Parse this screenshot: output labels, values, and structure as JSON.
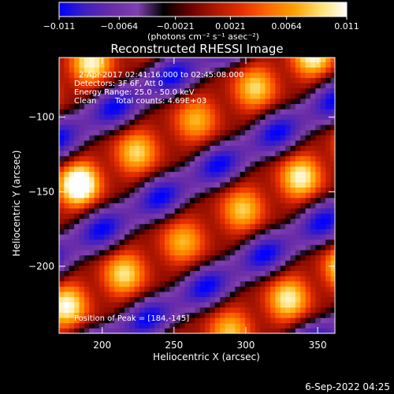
{
  "colors": {
    "background": "#000000",
    "foreground": "#ffffff",
    "colorbar_stops": [
      "#0000ff",
      "#4020c0",
      "#6a2ca8",
      "#8040b0",
      "#000000",
      "#6a0000",
      "#b01800",
      "#e83000",
      "#ff6a00",
      "#ffa000",
      "#ffe070",
      "#ffffff"
    ]
  },
  "footer": {
    "timestamp": "6-Sep-2022 04:25"
  },
  "chart_data": {
    "type": "heatmap",
    "title": "Reconstructed RHESSI Image",
    "xlabel": "Heliocentric X (arcsec)",
    "ylabel": "Heliocentric Y (arcsec)",
    "xlim": [
      170,
      362
    ],
    "ylim": [
      -245,
      -60
    ],
    "x_ticks": [
      200,
      250,
      300,
      350
    ],
    "x_tick_labels": [
      "200",
      "250",
      "300",
      "350"
    ],
    "y_ticks": [
      -100,
      -150,
      -200
    ],
    "y_tick_labels": [
      "-100",
      "-150",
      "-200"
    ],
    "grid": false,
    "colorbar": {
      "range": [
        -0.011,
        0.011
      ],
      "ticks": [
        -0.011,
        -0.0064,
        -0.0021,
        0.0021,
        0.0064,
        0.011
      ],
      "tick_labels": [
        "-0.011",
        "-0.0064",
        "-0.0021",
        "0.0021",
        "0.0064",
        "0.011"
      ],
      "units": "(photons cm⁻² s⁻¹ asec⁻²)"
    },
    "info": {
      "time": "2-Apr-2017 02:41:16.000 to 02:45:08.000",
      "detectors": "Detectors: 3F 6F, Att 0",
      "energy": "Energy Range: 25.0 - 50.0 keV",
      "clean": "Clean",
      "total_counts": "Total counts: 4.69E+03"
    },
    "peak": {
      "label": "Position of Peak = [184,-145]",
      "x": 184,
      "y": -145
    },
    "pattern": {
      "description_values": "fringe pattern of alternating positive/negative bands",
      "max_value": 0.011,
      "min_value": -0.011
    }
  }
}
